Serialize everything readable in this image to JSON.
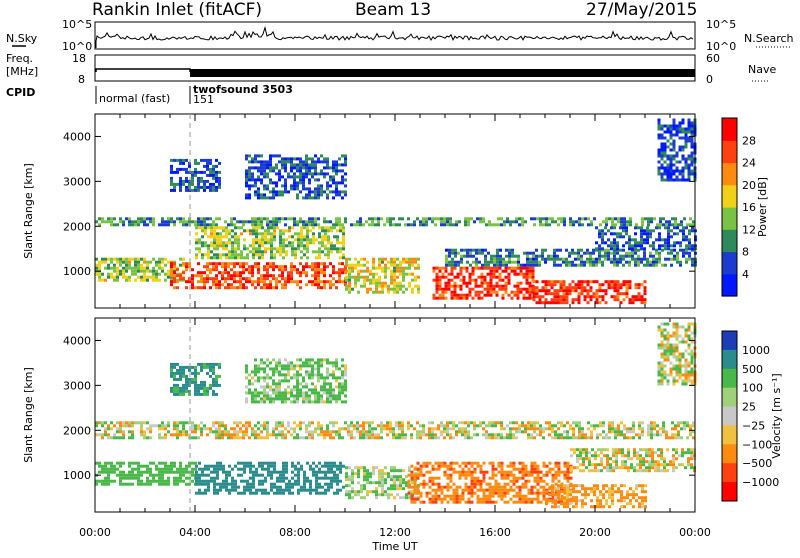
{
  "header": {
    "title": "Rankin Inlet (fitACF)",
    "beam": "Beam 13",
    "date": "27/May/2015"
  },
  "top_panels": {
    "nsky": {
      "label": "N.Sky",
      "right_label": "N.Search",
      "left_ticks": [
        "10^5",
        "10^0"
      ],
      "right_ticks": [
        "10^5",
        "10^0"
      ]
    },
    "freq": {
      "label_line1": "Freq.",
      "label_line2": "[MHz]",
      "left_ticks": [
        "18",
        "8"
      ],
      "right_label": "Nave",
      "right_ticks": [
        "60",
        "0"
      ]
    },
    "cpid": {
      "label": "CPID",
      "modes": [
        {
          "name": "normal (fast)",
          "id": "",
          "start_hour": 0,
          "end_hour": 3.9
        },
        {
          "name": "twofsound 3503",
          "id": "151",
          "start_hour": 3.9,
          "end_hour": 24
        }
      ]
    }
  },
  "x_axis": {
    "label": "Time UT",
    "ticks": [
      "00:00",
      "04:00",
      "08:00",
      "12:00",
      "16:00",
      "20:00",
      "00:00"
    ]
  },
  "panels": [
    {
      "ylabel": "Slant Range [km]",
      "yticks": [
        "1000",
        "2000",
        "3000",
        "4000"
      ],
      "colorbar": {
        "label": "Power [dB]",
        "ticks": [
          "4",
          "8",
          "12",
          "16",
          "20",
          "24",
          "28"
        ],
        "colors": [
          "#0018ff",
          "#1c3cd0",
          "#2f8a5a",
          "#7ac243",
          "#f0d018",
          "#ff8a10",
          "#ff4010",
          "#ff0000"
        ]
      }
    },
    {
      "ylabel": "Slant Range [km]",
      "yticks": [
        "1000",
        "2000",
        "3000",
        "4000"
      ],
      "colorbar": {
        "label": "Velocity [m s⁻¹]",
        "ticks": [
          "1000",
          "500",
          "100",
          "25",
          "−25",
          "−100",
          "−500",
          "−1000"
        ],
        "colors": [
          "#1c3cb8",
          "#2a8c8c",
          "#48b848",
          "#9fd07a",
          "#c8c8c8",
          "#f0c040",
          "#ff8a10",
          "#ff4010",
          "#ff0000"
        ]
      }
    }
  ],
  "chart_data": [
    {
      "type": "heatmap",
      "title": "Rankin Inlet (fitACF)",
      "subtitle": "Beam 13",
      "xlabel": "Time UT",
      "ylabel": "Slant Range [km]",
      "x_range_hours": [
        0,
        24
      ],
      "y_range_km": [
        180,
        4500
      ],
      "colorbar_label": "Power [dB]",
      "colorbar_range": [
        0,
        30
      ],
      "echo_regions": [
        {
          "t_start": 0.0,
          "t_end": 24.0,
          "r_low": 2000,
          "r_high": 2200,
          "value_db": 10
        },
        {
          "t_start": 0.0,
          "t_end": 3.5,
          "r_low": 800,
          "r_high": 1300,
          "value_db": 14
        },
        {
          "t_start": 3.0,
          "t_end": 10.0,
          "r_low": 600,
          "r_high": 1200,
          "value_db": 24
        },
        {
          "t_start": 4.0,
          "t_end": 10.0,
          "r_low": 1300,
          "r_high": 2000,
          "value_db": 14
        },
        {
          "t_start": 10.0,
          "t_end": 13.0,
          "r_low": 500,
          "r_high": 1300,
          "value_db": 16
        },
        {
          "t_start": 13.5,
          "t_end": 17.5,
          "r_low": 400,
          "r_high": 1100,
          "value_db": 26
        },
        {
          "t_start": 17.5,
          "t_end": 22.0,
          "r_low": 300,
          "r_high": 800,
          "value_db": 26
        },
        {
          "t_start": 14.0,
          "t_end": 24.0,
          "r_low": 1100,
          "r_high": 1500,
          "value_db": 8
        },
        {
          "t_start": 20.0,
          "t_end": 24.0,
          "r_low": 1500,
          "r_high": 2000,
          "value_db": 6
        },
        {
          "t_start": 6.0,
          "t_end": 10.0,
          "r_low": 2600,
          "r_high": 3600,
          "value_db": 6
        },
        {
          "t_start": 3.0,
          "t_end": 5.0,
          "r_low": 2800,
          "r_high": 3500,
          "value_db": 6
        },
        {
          "t_start": 22.5,
          "t_end": 24.0,
          "r_low": 3000,
          "r_high": 4400,
          "value_db": 5
        }
      ]
    },
    {
      "type": "heatmap",
      "xlabel": "Time UT",
      "ylabel": "Slant Range [km]",
      "x_range_hours": [
        0,
        24
      ],
      "y_range_km": [
        180,
        4500
      ],
      "colorbar_label": "Velocity [m s⁻¹]",
      "colorbar_levels": [
        1000,
        500,
        100,
        25,
        -25,
        -100,
        -500,
        -1000
      ],
      "echo_regions": [
        {
          "t_start": 0.0,
          "t_end": 24.0,
          "r_low": 1800,
          "r_high": 2200,
          "value_ms": 0
        },
        {
          "t_start": 0.0,
          "t_end": 4.0,
          "r_low": 800,
          "r_high": 1300,
          "value_ms": 300
        },
        {
          "t_start": 4.0,
          "t_end": 10.0,
          "r_low": 600,
          "r_high": 1300,
          "value_ms": 800
        },
        {
          "t_start": 10.0,
          "t_end": 13.0,
          "r_low": 500,
          "r_high": 1200,
          "value_ms": 100
        },
        {
          "t_start": 12.5,
          "t_end": 19.0,
          "r_low": 400,
          "r_high": 1300,
          "value_ms": -400
        },
        {
          "t_start": 18.0,
          "t_end": 22.0,
          "r_low": 300,
          "r_high": 800,
          "value_ms": -200
        },
        {
          "t_start": 19.0,
          "t_end": 24.0,
          "r_low": 1100,
          "r_high": 1600,
          "value_ms": 0
        },
        {
          "t_start": 3.0,
          "t_end": 5.0,
          "r_low": 2800,
          "r_high": 3500,
          "value_ms": 600
        },
        {
          "t_start": 6.0,
          "t_end": 10.0,
          "r_low": 2600,
          "r_high": 3600,
          "value_ms": 150
        },
        {
          "t_start": 22.5,
          "t_end": 24.0,
          "r_low": 3000,
          "r_high": 4400,
          "value_ms": 0
        }
      ]
    }
  ]
}
